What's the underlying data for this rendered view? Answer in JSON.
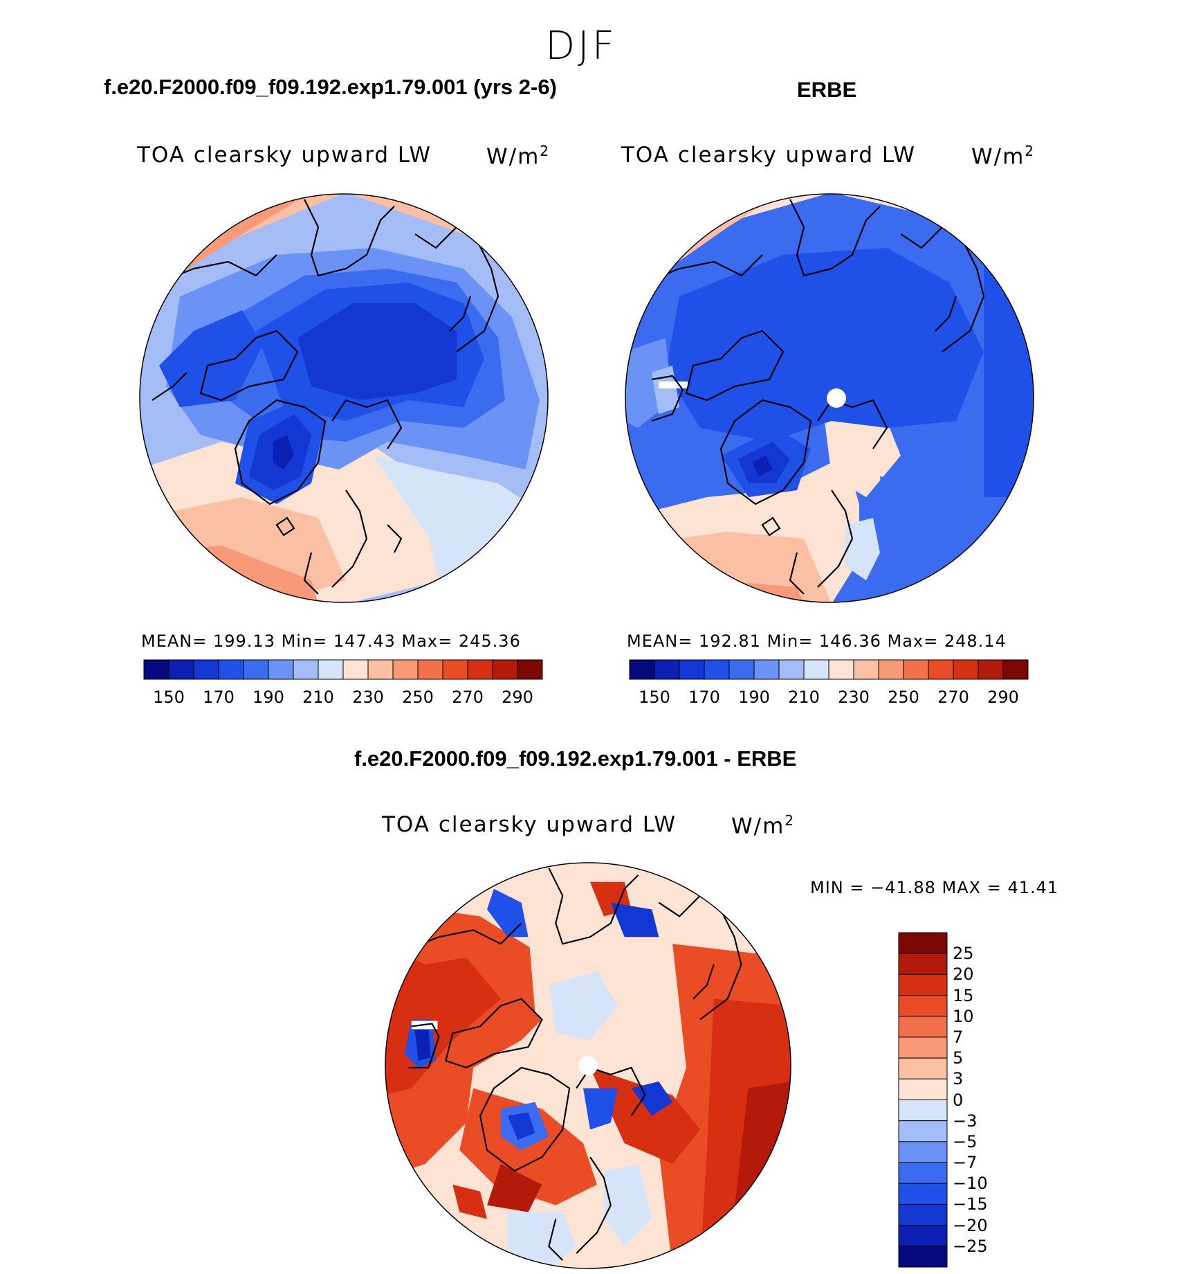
{
  "figure": {
    "season": "DJF"
  },
  "panels": {
    "model": {
      "case_title": "f.e20.F2000.f09_f09.192.exp1.79.001 (yrs 2-6)",
      "variable": "TOA clearsky upward LW",
      "units": "W/m",
      "units_sup": "2",
      "stats": "MEAN=  199.13   Min=  147.43   Max=  245.36"
    },
    "obs": {
      "case_title": "ERBE",
      "variable": "TOA clearsky upward LW",
      "units": "W/m",
      "units_sup": "2",
      "stats": "MEAN=  192.81   Min=  146.36   Max=  248.14"
    },
    "diff": {
      "case_title": "f.e20.F2000.f09_f09.192.exp1.79.001 - ERBE",
      "variable": "TOA clearsky upward LW",
      "units": "W/m",
      "units_sup": "2",
      "minmax": "MIN  =  −41.88  MAX  =    41.41"
    }
  },
  "colorbars": {
    "absolute": {
      "tick_labels": [
        "150",
        "170",
        "190",
        "210",
        "230",
        "250",
        "270",
        "290"
      ],
      "colors": [
        "#040b7f",
        "#0b1fb2",
        "#1337d3",
        "#1f51e8",
        "#3b6cf0",
        "#6b93f5",
        "#a5bdf7",
        "#d6e4fa",
        "#fde3d3",
        "#fbc0a4",
        "#f89a77",
        "#f2714b",
        "#ea4c25",
        "#d62f12",
        "#b31a0a",
        "#7c0703"
      ]
    },
    "difference": {
      "tick_labels": [
        "25",
        "20",
        "15",
        "10",
        "7",
        "5",
        "3",
        "0",
        "−3",
        "−5",
        "−7",
        "−10",
        "−15",
        "−20",
        "−25"
      ],
      "colors": [
        "#7c0703",
        "#b31a0a",
        "#d62f12",
        "#ea4c25",
        "#f2714b",
        "#f89a77",
        "#fbc0a4",
        "#fde3d3",
        "#d6e4fa",
        "#a5bdf7",
        "#6b93f5",
        "#3b6cf0",
        "#1f51e8",
        "#1337d3",
        "#0b1fb2",
        "#040b7f"
      ]
    }
  },
  "colors": {
    "continent_outline": "#000000",
    "missing": "#ffffff"
  }
}
